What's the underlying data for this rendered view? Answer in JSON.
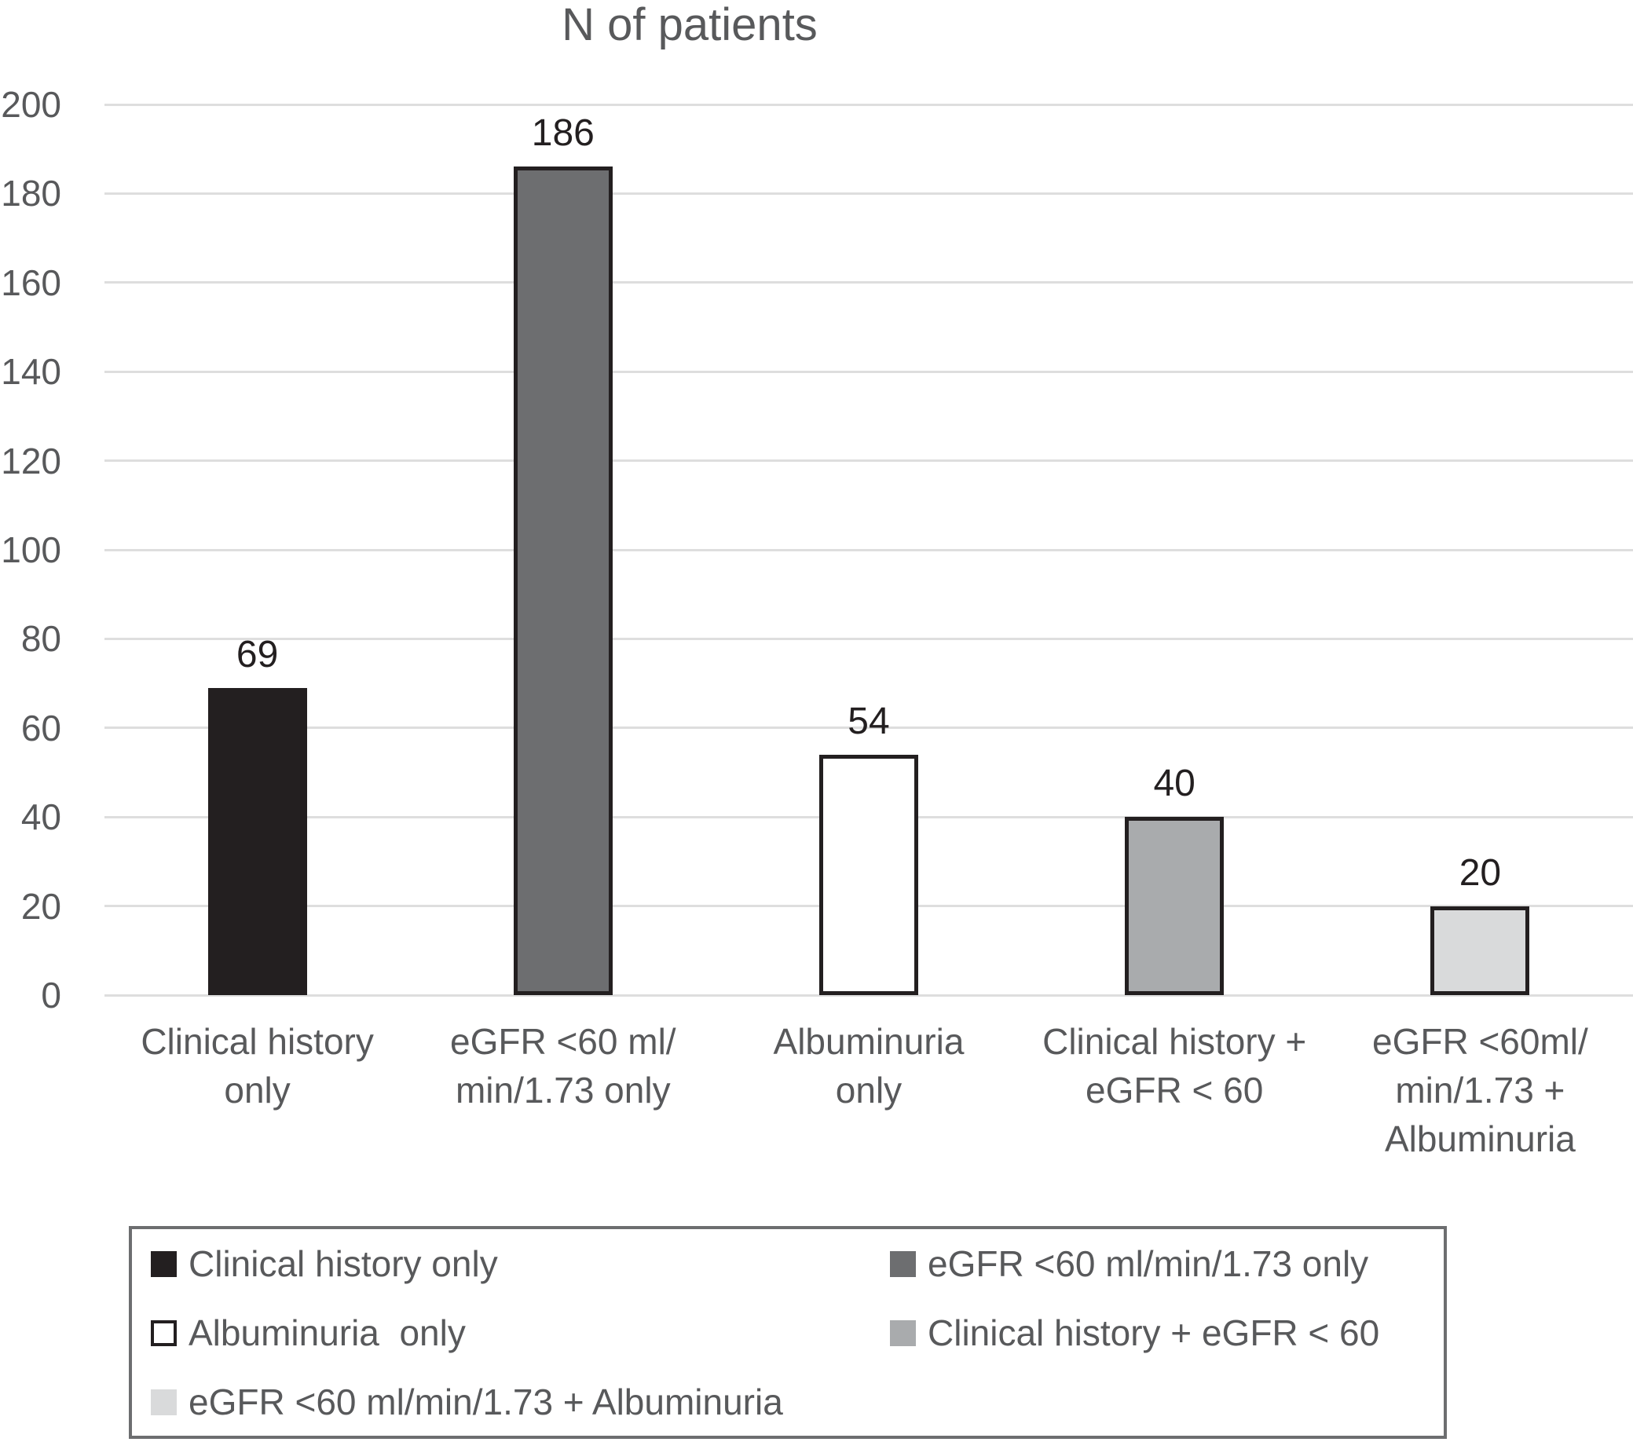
{
  "chart_data": {
    "type": "bar",
    "title": "N of patients",
    "xlabel": "",
    "ylabel": "",
    "ylim": [
      0,
      200
    ],
    "ytick_step": 20,
    "grid": true,
    "legend_position": "bottom",
    "categories": [
      "Clinical history\nonly",
      "eGFR <60 ml/\nmin/1.73 only",
      "Albuminuria\nonly",
      "Clinical history +\neGFR < 60",
      "eGFR <60ml/\nmin/1.73 +\nAlbuminuria"
    ],
    "values": [
      69,
      186,
      54,
      40,
      20
    ],
    "value_labels": [
      "69",
      "186",
      "54",
      "40",
      "20"
    ],
    "bar_fill_colors": [
      "#231f20",
      "#6d6e70",
      "#ffffff",
      "#a9abad",
      "#d9dadb"
    ],
    "bar_border_color": "#231f20",
    "legend_items_column_major": [
      {
        "label": "Clinical history only",
        "swatch_color": "#231f20",
        "swatch_border": false
      },
      {
        "label": "Albuminuria  only",
        "swatch_color": "#ffffff",
        "swatch_border": true
      },
      {
        "label": "eGFR <60 ml/min/1.73 + Albuminuria",
        "swatch_color": "#d9dadb",
        "swatch_border": false
      },
      {
        "label": "eGFR <60 ml/min/1.73 only",
        "swatch_color": "#6d6e70",
        "swatch_border": false
      },
      {
        "label": "Clinical history + eGFR < 60",
        "swatch_color": "#a9abad",
        "swatch_border": false
      }
    ],
    "colors": {
      "axis_text": "#58595b",
      "value_label_text": "#231f20",
      "gridline": "#dedede",
      "legend_border": "#6d6e70",
      "background": "#ffffff"
    }
  }
}
